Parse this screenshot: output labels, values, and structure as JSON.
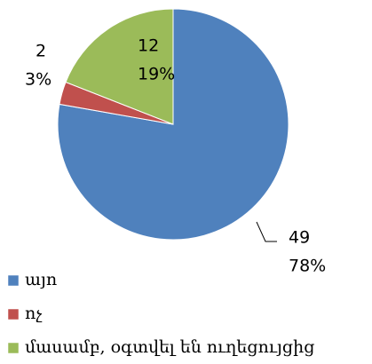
{
  "chart_data": {
    "type": "pie",
    "categories": [
      "այո",
      "ոչ",
      "մասամբ, օգտվել են ուղեցույցից"
    ],
    "values": [
      49,
      2,
      12
    ],
    "percent_labels": [
      "78%",
      "3%",
      "19%"
    ],
    "colors": [
      "#4f81bd",
      "#c0504d",
      "#9bbb59"
    ],
    "legend": "bottom-left"
  }
}
